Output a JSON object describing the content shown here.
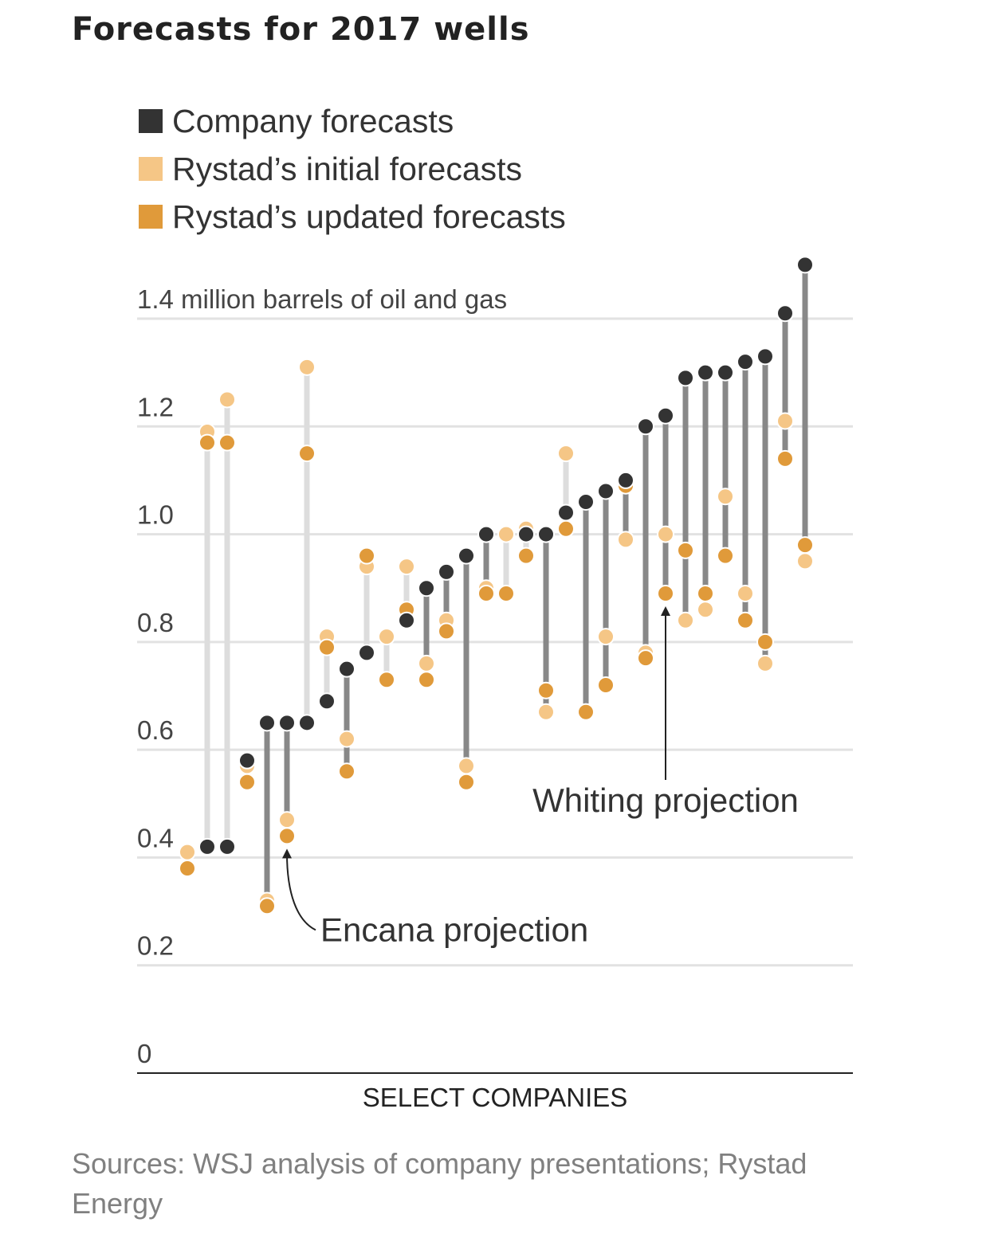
{
  "title": "Forecasts for 2017 wells",
  "legend": [
    {
      "label": "Company forecasts",
      "color": "#333333"
    },
    {
      "label": "Rystad’s initial forecasts",
      "color": "#f5c686"
    },
    {
      "label": "Rystad’s updated forecasts",
      "color": "#e09a3a"
    }
  ],
  "source": "Sources: WSJ analysis of company presentations; Rystad Energy",
  "chart_data": {
    "type": "scatter",
    "title": "Forecasts for 2017 wells",
    "ylabel": "1.4 million barrels of oil and gas",
    "xlabel": "SELECT COMPANIES",
    "ylim": [
      0,
      1.4
    ],
    "yticks": [
      {
        "value": 0,
        "label": "0"
      },
      {
        "value": 0.2,
        "label": "0.2"
      },
      {
        "value": 0.4,
        "label": "0.4"
      },
      {
        "value": 0.6,
        "label": "0.6"
      },
      {
        "value": 0.8,
        "label": "0.8"
      },
      {
        "value": 1.0,
        "label": "1.0"
      },
      {
        "value": 1.2,
        "label": "1.2"
      },
      {
        "value": 1.4,
        "label": "1.4 million barrels of oil and gas"
      }
    ],
    "grid": true,
    "colors": {
      "company": "#333333",
      "initial": "#f5c686",
      "updated": "#e09a3a",
      "bar_light": "#dddddd",
      "bar_dark": "#888888"
    },
    "series_names": [
      "Company forecasts",
      "Rystad’s initial forecasts",
      "Rystad’s updated forecasts"
    ],
    "companies": [
      {
        "company": null,
        "initial": 0.41,
        "updated": 0.38
      },
      {
        "company": 0.42,
        "initial": 1.19,
        "updated": 1.17
      },
      {
        "company": 0.42,
        "initial": 1.25,
        "updated": 1.17
      },
      {
        "company": 0.58,
        "initial": 0.57,
        "updated": 0.54
      },
      {
        "company": 0.65,
        "initial": 0.32,
        "updated": 0.31
      },
      {
        "company": 0.65,
        "initial": 0.47,
        "updated": 0.44
      },
      {
        "company": 0.65,
        "initial": 1.31,
        "updated": 1.15
      },
      {
        "company": 0.69,
        "initial": 0.81,
        "updated": 0.79
      },
      {
        "company": 0.75,
        "initial": 0.62,
        "updated": 0.56
      },
      {
        "company": 0.78,
        "initial": 0.94,
        "updated": 0.96
      },
      {
        "company": null,
        "initial": 0.81,
        "updated": 0.73
      },
      {
        "company": 0.84,
        "initial": 0.94,
        "updated": 0.86
      },
      {
        "company": 0.9,
        "initial": 0.76,
        "updated": 0.73
      },
      {
        "company": 0.93,
        "initial": 0.84,
        "updated": 0.82
      },
      {
        "company": 0.96,
        "initial": 0.57,
        "updated": 0.54
      },
      {
        "company": 1.0,
        "initial": 0.9,
        "updated": 0.89
      },
      {
        "company": null,
        "initial": 1.0,
        "updated": 0.89
      },
      {
        "company": 1.0,
        "initial": 1.01,
        "updated": 0.96
      },
      {
        "company": 1.0,
        "initial": 0.67,
        "updated": 0.71
      },
      {
        "company": 1.04,
        "initial": 1.15,
        "updated": 1.01
      },
      {
        "company": 1.06,
        "initial": 0.67,
        "updated": 0.67
      },
      {
        "company": 1.08,
        "initial": 0.81,
        "updated": 0.72
      },
      {
        "company": 1.1,
        "initial": 0.99,
        "updated": 1.09
      },
      {
        "company": 1.2,
        "initial": 0.78,
        "updated": 0.77
      },
      {
        "company": 1.22,
        "initial": 1.0,
        "updated": 0.89
      },
      {
        "company": 1.29,
        "initial": 0.84,
        "updated": 0.97
      },
      {
        "company": 1.3,
        "initial": 0.86,
        "updated": 0.89
      },
      {
        "company": 1.3,
        "initial": 1.07,
        "updated": 0.96
      },
      {
        "company": 1.32,
        "initial": 0.89,
        "updated": 0.84
      },
      {
        "company": 1.33,
        "initial": 0.76,
        "updated": 0.8
      },
      {
        "company": 1.41,
        "initial": 1.21,
        "updated": 1.14
      },
      {
        "company": 1.5,
        "initial": 0.95,
        "updated": 0.98
      }
    ],
    "annotations": [
      {
        "text": "Encana projection",
        "company_index": 5,
        "value": 0.44
      },
      {
        "text": "Whiting projection",
        "company_index": 24,
        "value": 0.89
      }
    ]
  }
}
